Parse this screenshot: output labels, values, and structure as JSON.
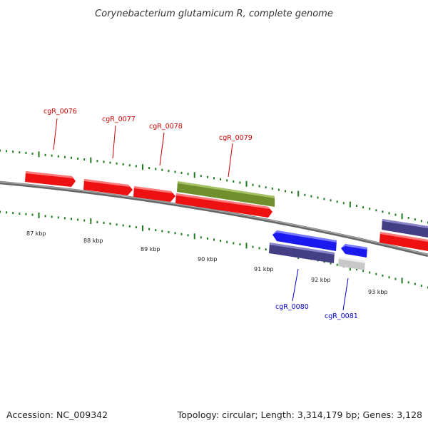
{
  "title": "Corynebacterium glutamicum R, complete genome",
  "footer": {
    "accession": "Accession: NC_009342",
    "summary": "Topology: circular; Length: 3,314,179 bp; Genes: 3,128"
  },
  "colors": {
    "forward_gene": "#ee1111",
    "reverse_gene": "#1a1aee",
    "cds_dark": "#443f85",
    "highlight_green": "#6e8f2c",
    "pseudo_gray": "#c8c8c8",
    "label_forward": "#cc0000",
    "label_reverse": "#0000cc",
    "tick": "#1f7a1f",
    "backbone": "#808080"
  },
  "scale": {
    "unit": "kbp",
    "labels": [
      "87 kbp",
      "88 kbp",
      "89 kbp",
      "90 kbp",
      "91 kbp",
      "92 kbp",
      "93 kbp"
    ]
  },
  "genes": [
    {
      "label": "cgR_0076",
      "strand": "forward"
    },
    {
      "label": "cgR_0077",
      "strand": "forward"
    },
    {
      "label": "cgR_0078",
      "strand": "forward"
    },
    {
      "label": "cgR_0079",
      "strand": "forward"
    },
    {
      "label": "cgR_0080",
      "strand": "reverse"
    },
    {
      "label": "cgR_0081",
      "strand": "reverse"
    }
  ]
}
